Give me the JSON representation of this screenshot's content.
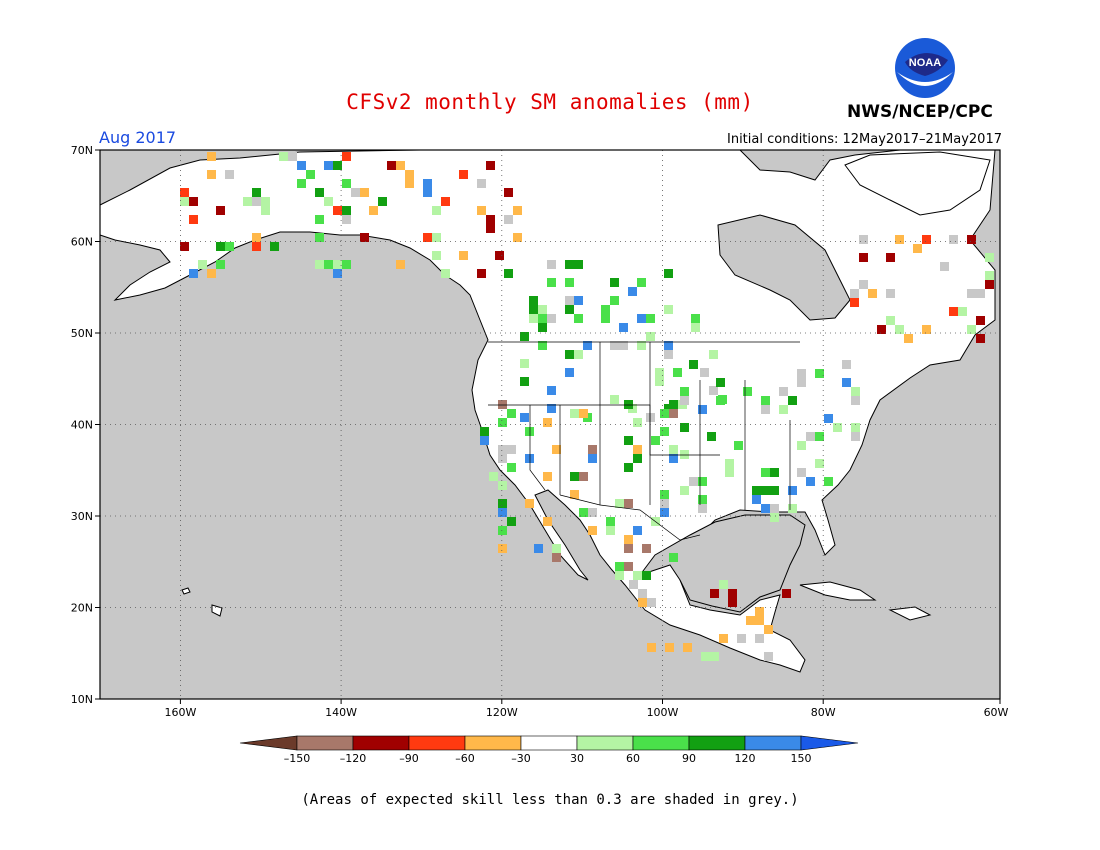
{
  "header": {
    "title": "CFSv2 monthly SM anomalies (mm)",
    "agency": "NWS/NCEP/CPC",
    "logo_text": "NOAA",
    "forecast_month": "Aug 2017",
    "initial_conditions": "Initial conditions: 12May2017–21May2017"
  },
  "map": {
    "region": "North America",
    "lon_range": [
      -172,
      -60
    ],
    "lat_range": [
      10,
      70
    ],
    "lat_labels": [
      "70N",
      "60N",
      "50N",
      "40N",
      "30N",
      "20N",
      "10N"
    ],
    "lon_labels": [
      "160W",
      "140W",
      "120W",
      "100W",
      "80W",
      "60W"
    ],
    "colors": {
      "ocean": "#c8c8c8",
      "land": "#ffffff",
      "grid": "#555555"
    }
  },
  "colorbar": {
    "ticks": [
      "–150",
      "–120",
      "–90",
      "–60",
      "–30",
      "30",
      "60",
      "90",
      "120",
      "150"
    ],
    "colors": [
      "#6b3a2a",
      "#a8786a",
      "#a00000",
      "#ff3a10",
      "#ffb84a",
      "#ffffff",
      "#b4f4a4",
      "#4ae04a",
      "#12a012",
      "#3a8ae8",
      "#1a5ae8"
    ]
  },
  "footnote": "(Areas of expected skill less than 0.3 are shaded in grey.)"
}
